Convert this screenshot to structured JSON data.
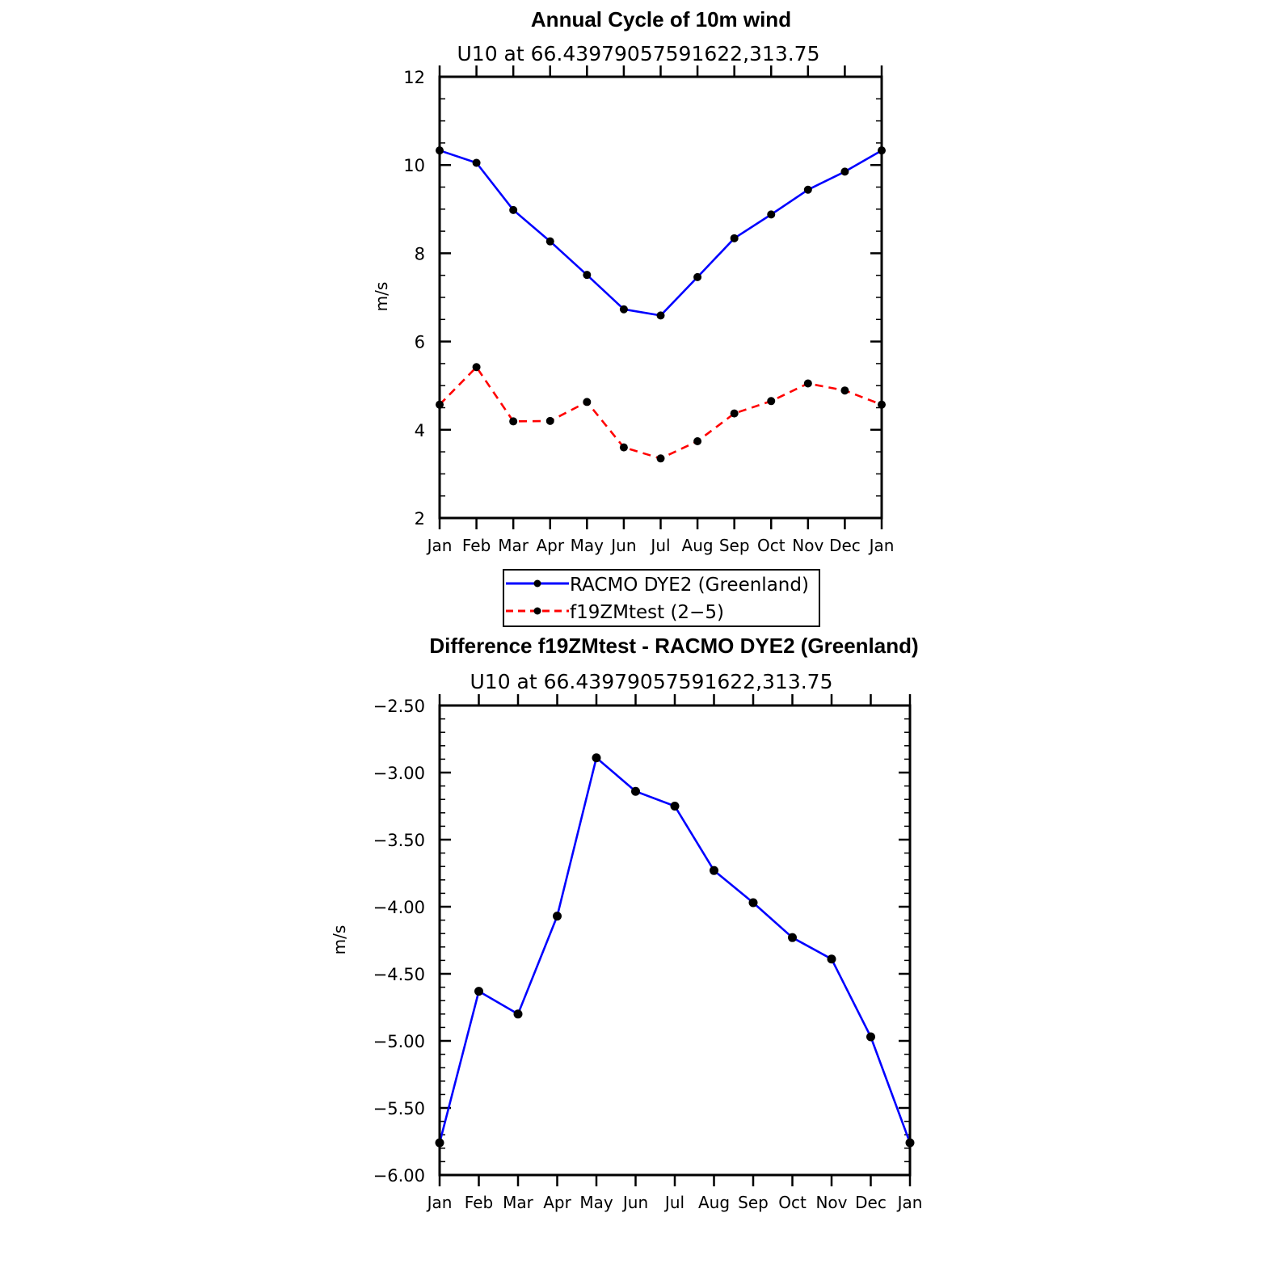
{
  "chart_data": [
    {
      "type": "line",
      "title": "Annual Cycle of 10m wind",
      "subtitle": "U10 at 66.43979057591622,313.75",
      "xlabel": "",
      "ylabel": "m/s",
      "ylim": [
        2,
        12
      ],
      "yticks": [
        "2",
        "4",
        "6",
        "8",
        "10",
        "12"
      ],
      "ytick_values": [
        2,
        4,
        6,
        8,
        10,
        12
      ],
      "y_minor_step": 0.5,
      "categories": [
        "Jan",
        "Feb",
        "Mar",
        "Apr",
        "May",
        "Jun",
        "Jul",
        "Aug",
        "Sep",
        "Oct",
        "Nov",
        "Dec",
        "Jan"
      ],
      "series": [
        {
          "name": "RACMO DYE2 (Greenland)",
          "color": "#0000ff",
          "dash": "solid",
          "values": [
            10.33,
            10.05,
            8.98,
            8.27,
            7.51,
            6.73,
            6.59,
            7.46,
            8.34,
            8.88,
            9.44,
            9.85,
            10.33
          ]
        },
        {
          "name": "f19ZMtest (2-5)",
          "color": "#ff0000",
          "dash": "dashed",
          "values": [
            4.57,
            5.42,
            4.19,
            4.2,
            4.63,
            3.6,
            3.35,
            3.74,
            4.37,
            4.65,
            5.05,
            4.89,
            4.57
          ]
        }
      ],
      "legend": {
        "position": "bottom-center",
        "entries": [
          "RACMO DYE2 (Greenland)",
          "f19ZMtest (2−5)"
        ]
      }
    },
    {
      "type": "line",
      "title": "Difference f19ZMtest - RACMO DYE2 (Greenland)",
      "subtitle": "U10 at 66.43979057591622,313.75",
      "xlabel": "",
      "ylabel": "m/s",
      "ylim": [
        -6.0,
        -2.5
      ],
      "yticks": [
        "−2.50",
        "−3.00",
        "−3.50",
        "−4.00",
        "−4.50",
        "−5.00",
        "−5.50",
        "−6.00"
      ],
      "ytick_values": [
        -2.5,
        -3.0,
        -3.5,
        -4.0,
        -4.5,
        -5.0,
        -5.5,
        -6.0
      ],
      "y_minor_step": 0.1,
      "categories": [
        "Jan",
        "Feb",
        "Mar",
        "Apr",
        "May",
        "Jun",
        "Jul",
        "Aug",
        "Sep",
        "Oct",
        "Nov",
        "Dec",
        "Jan"
      ],
      "series": [
        {
          "name": "Difference",
          "color": "#0000ff",
          "dash": "solid",
          "values": [
            -5.76,
            -4.63,
            -4.8,
            -4.07,
            -2.89,
            -3.14,
            -3.25,
            -3.73,
            -3.97,
            -4.23,
            -4.39,
            -4.97,
            -5.76
          ]
        }
      ]
    }
  ]
}
